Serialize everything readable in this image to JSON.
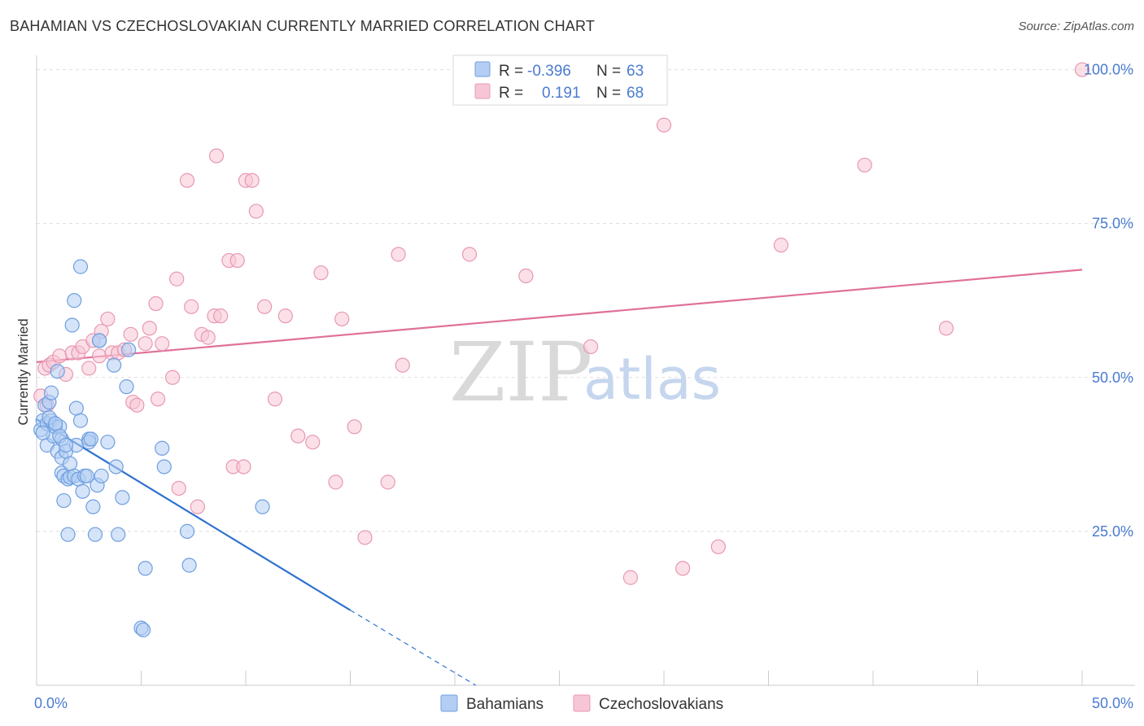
{
  "header": {
    "title": "BAHAMIAN VS CZECHOSLOVAKIAN CURRENTLY MARRIED CORRELATION CHART",
    "source": "Source: ZipAtlas.com"
  },
  "colors": {
    "blue_fill": "#b3cef2",
    "blue_stroke": "#6f9fe0",
    "blue_line": "#2f72d0",
    "pink_fill": "#f7c6d6",
    "pink_stroke": "#e898b2",
    "pink_line": "#e0709a",
    "tick_text": "#4a7bd0",
    "grid": "#dddddd"
  },
  "watermark": {
    "zip": "ZIP",
    "atlas": "atlas"
  },
  "legend_top": {
    "rows": [
      {
        "r_label": "R =",
        "r_value": "-0.396",
        "n_label": "N =",
        "n_value": "63",
        "series": "blue"
      },
      {
        "r_label": "R =",
        "r_value": "0.191",
        "n_label": "N =",
        "n_value": "68",
        "series": "pink"
      }
    ]
  },
  "legend_bottom": {
    "items": [
      {
        "label": "Bahamians",
        "series": "blue"
      },
      {
        "label": "Czechoslovakians",
        "series": "pink"
      }
    ]
  },
  "chart_data": {
    "type": "scatter",
    "title": "BAHAMIAN VS CZECHOSLOVAKIAN CURRENTLY MARRIED CORRELATION CHART",
    "xlabel": "",
    "ylabel": "Currently Married",
    "xlim": [
      0,
      50
    ],
    "ylim": [
      0,
      101
    ],
    "x_tick_labels": [
      {
        "value": 0,
        "label": "0.0%"
      },
      {
        "value": 50,
        "label": "50.0%"
      }
    ],
    "y_tick_labels": [
      {
        "value": 25,
        "label": "25.0%"
      },
      {
        "value": 50,
        "label": "50.0%"
      },
      {
        "value": 75,
        "label": "75.0%"
      },
      {
        "value": 100,
        "label": "100.0%"
      }
    ],
    "grid": true,
    "legend_position": "top-center",
    "series": [
      {
        "name": "Bahamians",
        "color": "blue",
        "r": -0.396,
        "n": 63,
        "trend": {
          "x0": 0,
          "y0": 43.2,
          "x1": 15,
          "y1": 12.2,
          "dashed_to_x": 21,
          "dashed_to_y": 0
        },
        "points": [
          [
            0.2,
            41.5
          ],
          [
            0.3,
            43.0
          ],
          [
            0.4,
            45.5
          ],
          [
            0.5,
            42.5
          ],
          [
            0.5,
            39.0
          ],
          [
            0.6,
            46.0
          ],
          [
            0.7,
            47.5
          ],
          [
            0.7,
            43.0
          ],
          [
            0.8,
            40.5
          ],
          [
            0.9,
            42.0
          ],
          [
            1.0,
            51.0
          ],
          [
            1.0,
            38.0
          ],
          [
            1.1,
            42.0
          ],
          [
            1.2,
            40.0
          ],
          [
            1.2,
            37.0
          ],
          [
            1.2,
            34.5
          ],
          [
            1.3,
            34.0
          ],
          [
            1.3,
            30.0
          ],
          [
            1.4,
            38.0
          ],
          [
            1.5,
            24.5
          ],
          [
            1.5,
            33.5
          ],
          [
            1.6,
            33.8
          ],
          [
            1.6,
            36.0
          ],
          [
            1.7,
            58.5
          ],
          [
            1.8,
            34.0
          ],
          [
            1.8,
            62.5
          ],
          [
            1.9,
            39.0
          ],
          [
            1.9,
            45.0
          ],
          [
            2.0,
            33.5
          ],
          [
            2.1,
            43.0
          ],
          [
            2.1,
            68.0
          ],
          [
            2.2,
            31.5
          ],
          [
            2.3,
            34.0
          ],
          [
            2.5,
            40.0
          ],
          [
            2.5,
            39.5
          ],
          [
            2.6,
            40.0
          ],
          [
            2.7,
            29.0
          ],
          [
            2.8,
            24.5
          ],
          [
            2.9,
            32.5
          ],
          [
            3.0,
            56.0
          ],
          [
            3.1,
            34.0
          ],
          [
            3.4,
            39.5
          ],
          [
            3.7,
            52.0
          ],
          [
            3.8,
            35.5
          ],
          [
            3.9,
            24.5
          ],
          [
            4.1,
            30.5
          ],
          [
            4.3,
            48.5
          ],
          [
            4.4,
            54.5
          ],
          [
            5.0,
            9.3
          ],
          [
            5.1,
            9.0
          ],
          [
            5.2,
            19.0
          ],
          [
            6.0,
            38.5
          ],
          [
            6.1,
            35.5
          ],
          [
            7.2,
            25.0
          ],
          [
            7.3,
            19.5
          ],
          [
            10.8,
            29.0
          ],
          [
            0.3,
            41.0
          ],
          [
            0.6,
            43.5
          ],
          [
            1.1,
            40.5
          ],
          [
            2.4,
            34.0
          ],
          [
            3.0,
            56.0
          ],
          [
            1.4,
            39.0
          ],
          [
            0.9,
            42.5
          ]
        ]
      },
      {
        "name": "Czechoslovakians",
        "color": "pink",
        "r": 0.191,
        "n": 68,
        "trend": {
          "x0": 0,
          "y0": 52.5,
          "x1": 50,
          "y1": 67.5
        },
        "points": [
          [
            0.2,
            47.0
          ],
          [
            0.4,
            51.5
          ],
          [
            0.5,
            45.5
          ],
          [
            0.6,
            52.0
          ],
          [
            0.8,
            52.5
          ],
          [
            1.1,
            53.5
          ],
          [
            1.4,
            50.5
          ],
          [
            1.7,
            54.0
          ],
          [
            2.0,
            54.0
          ],
          [
            2.2,
            55.0
          ],
          [
            2.5,
            51.5
          ],
          [
            2.7,
            56.0
          ],
          [
            3.0,
            53.5
          ],
          [
            3.1,
            57.5
          ],
          [
            3.4,
            59.5
          ],
          [
            3.6,
            54.0
          ],
          [
            3.9,
            54.0
          ],
          [
            4.2,
            54.5
          ],
          [
            4.5,
            57.0
          ],
          [
            4.6,
            46.0
          ],
          [
            4.8,
            45.5
          ],
          [
            5.2,
            55.5
          ],
          [
            5.4,
            58.0
          ],
          [
            5.7,
            62.0
          ],
          [
            5.8,
            46.5
          ],
          [
            6.0,
            55.5
          ],
          [
            6.5,
            50.0
          ],
          [
            6.7,
            66.0
          ],
          [
            6.8,
            32.0
          ],
          [
            7.2,
            82.0
          ],
          [
            7.4,
            61.5
          ],
          [
            7.7,
            29.0
          ],
          [
            7.9,
            57.0
          ],
          [
            8.2,
            56.5
          ],
          [
            8.5,
            60.0
          ],
          [
            8.6,
            86.0
          ],
          [
            8.8,
            60.0
          ],
          [
            9.2,
            69.0
          ],
          [
            9.4,
            35.5
          ],
          [
            9.6,
            69.0
          ],
          [
            9.9,
            35.5
          ],
          [
            10.0,
            82.0
          ],
          [
            10.3,
            82.0
          ],
          [
            10.5,
            77.0
          ],
          [
            10.9,
            61.5
          ],
          [
            11.4,
            46.5
          ],
          [
            11.9,
            60.0
          ],
          [
            12.5,
            40.5
          ],
          [
            13.2,
            39.5
          ],
          [
            13.6,
            67.0
          ],
          [
            14.3,
            33.0
          ],
          [
            14.6,
            59.5
          ],
          [
            15.2,
            42.0
          ],
          [
            15.7,
            24.0
          ],
          [
            16.8,
            33.0
          ],
          [
            17.3,
            70.0
          ],
          [
            17.5,
            52.0
          ],
          [
            20.7,
            70.0
          ],
          [
            23.4,
            66.5
          ],
          [
            26.5,
            55.0
          ],
          [
            28.4,
            17.5
          ],
          [
            30.0,
            91.0
          ],
          [
            30.9,
            19.0
          ],
          [
            32.6,
            22.5
          ],
          [
            35.6,
            71.5
          ],
          [
            39.6,
            84.5
          ],
          [
            43.5,
            58.0
          ],
          [
            50.0,
            100.0
          ]
        ]
      }
    ]
  }
}
